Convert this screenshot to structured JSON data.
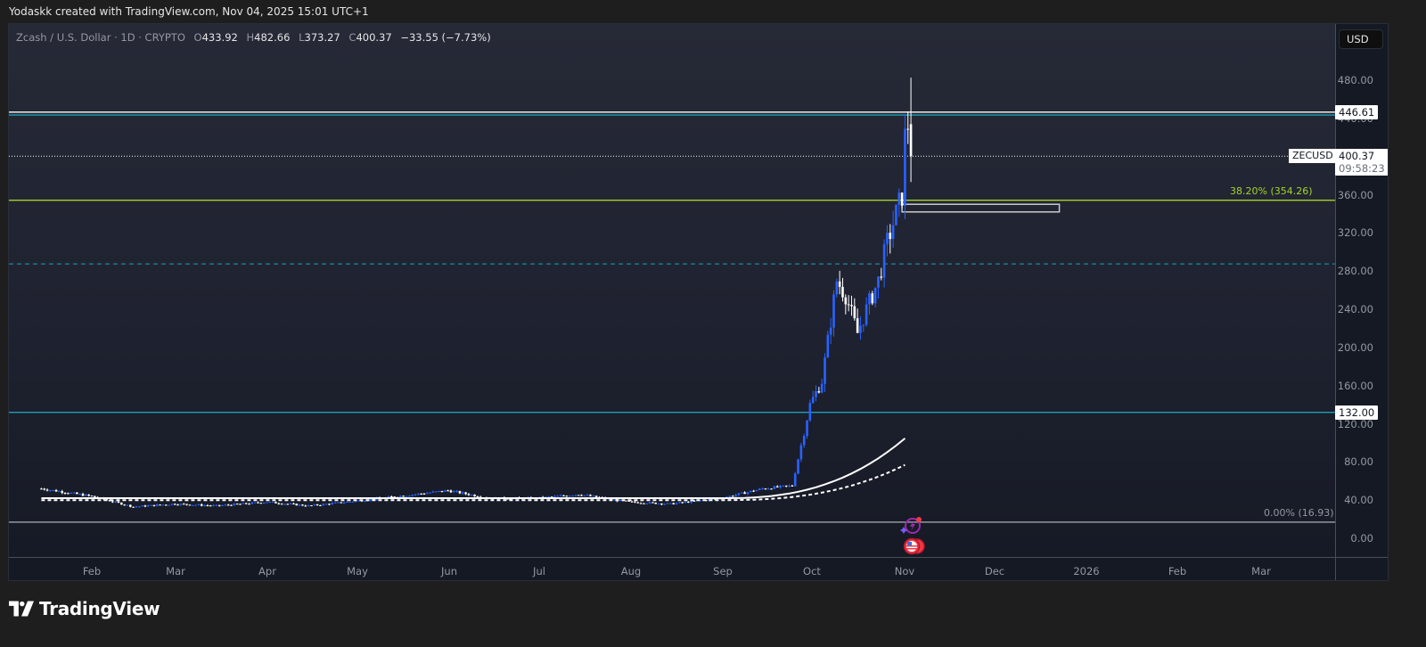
{
  "header": {
    "credit": "Yodaskk created with TradingView.com, Nov 04, 2025 15:01 UTC+1"
  },
  "legend": {
    "symbol_title": "Zcash / U.S. Dollar · 1D · CRYPTO",
    "open_label": "O",
    "open": "433.92",
    "high_label": "H",
    "high": "482.66",
    "low_label": "L",
    "low": "373.27",
    "close_label": "C",
    "close": "400.37",
    "change": "−33.55 (−7.73%)"
  },
  "price_axis": {
    "currency_button": "USD",
    "ticks": [
      "480.00",
      "440.00",
      "400.00",
      "360.00",
      "320.00",
      "280.00",
      "240.00",
      "200.00",
      "160.00",
      "120.00",
      "80.00",
      "40.00",
      "0.00"
    ],
    "tags": {
      "resistance": "446.61",
      "last_price": "400.37",
      "countdown": "09:58:23",
      "support": "132.00"
    },
    "symbol_tag": "ZECUSD"
  },
  "fib": {
    "level_382": "38.20% (354.26)",
    "level_0": "0.00% (16.93)",
    "color_382": "#a5d22c",
    "color_0": "#9598a1"
  },
  "time_axis": {
    "months": [
      "Feb",
      "Mar",
      "Apr",
      "May",
      "Jun",
      "Jul",
      "Aug",
      "Sep",
      "Oct",
      "Nov",
      "Dec",
      "2026",
      "Feb",
      "Mar"
    ]
  },
  "brand": {
    "name": "TradingView"
  },
  "colors": {
    "up_candle": "#2962ff",
    "down_candle": "#ffffff",
    "teal_line": "#1ba1b5",
    "fib_green": "#a5d22c",
    "ma_line": "#ffffff"
  },
  "chart_data": {
    "type": "candlestick",
    "title": "Zcash / U.S. Dollar · 1D · CRYPTO",
    "symbol": "ZECUSD",
    "timeframe": "1D",
    "xlabel": "",
    "ylabel": "USD",
    "ylim": [
      -20,
      530
    ],
    "x_ticks": [
      "Feb",
      "Mar",
      "Apr",
      "May",
      "Jun",
      "Jul",
      "Aug",
      "Sep",
      "Oct",
      "Nov",
      "Dec",
      "2026",
      "Feb",
      "Mar"
    ],
    "y_ticks": [
      0,
      40,
      80,
      120,
      160,
      200,
      240,
      280,
      320,
      360,
      400,
      440,
      480
    ],
    "last_bar": {
      "open": 433.92,
      "high": 482.66,
      "low": 373.27,
      "close": 400.37,
      "change": -33.55,
      "change_pct": -7.73
    },
    "horizontal_levels": [
      {
        "price": 446.61,
        "style": "solid",
        "color": "#ffffff",
        "label": "446.61"
      },
      {
        "price": 443.5,
        "style": "solid",
        "color": "#1ba1b5"
      },
      {
        "price": 400.37,
        "style": "dotted",
        "color": "#ffffff",
        "label": "last price"
      },
      {
        "price": 354.26,
        "style": "solid",
        "color": "#a5d22c",
        "label": "38.20% (354.26)"
      },
      {
        "price": 287.5,
        "style": "dashed",
        "color": "#1ba1b5"
      },
      {
        "price": 132.0,
        "style": "solid",
        "color": "#1ba1b5",
        "label": "132.00"
      },
      {
        "price": 16.93,
        "style": "solid",
        "color": "#9598a1",
        "label": "0.00% (16.93)"
      }
    ],
    "rectangle_zone": {
      "from": "2025-11-01",
      "to": "2025-12-24",
      "top": 350,
      "bottom": 342
    },
    "approx_closes": {
      "dates": [
        "2025-01-15",
        "2025-02-01",
        "2025-02-15",
        "2025-03-01",
        "2025-03-15",
        "2025-04-01",
        "2025-04-15",
        "2025-05-01",
        "2025-05-15",
        "2025-06-01",
        "2025-06-15",
        "2025-07-01",
        "2025-07-15",
        "2025-08-01",
        "2025-08-15",
        "2025-09-01",
        "2025-09-15",
        "2025-09-25",
        "2025-10-01",
        "2025-10-05",
        "2025-10-10",
        "2025-10-13",
        "2025-10-17",
        "2025-10-20",
        "2025-10-24",
        "2025-10-27",
        "2025-10-30",
        "2025-11-01",
        "2025-11-02",
        "2025-11-03",
        "2025-11-04"
      ],
      "values": [
        52,
        44,
        33,
        36,
        34,
        38,
        34,
        39,
        44,
        50,
        42,
        42,
        46,
        38,
        36,
        42,
        52,
        55,
        140,
        165,
        270,
        255,
        215,
        240,
        270,
        310,
        340,
        360,
        420,
        433.92,
        400.37
      ]
    },
    "moving_averages": [
      {
        "name": "MA (solid)",
        "style": "solid",
        "approx_end": 110
      },
      {
        "name": "MA (dashed)",
        "style": "dashed",
        "approx_end": 82
      }
    ]
  }
}
